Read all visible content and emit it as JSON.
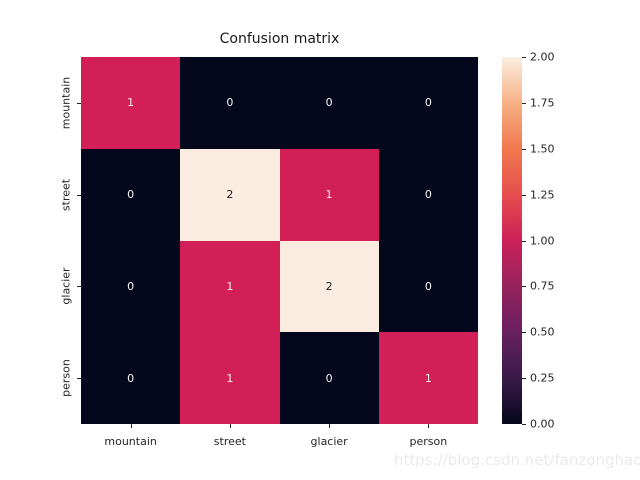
{
  "title": "Confusion matrix",
  "watermark": "https://blog.csdn.net/fanzonghao",
  "chart_data": {
    "type": "heatmap",
    "title": "Confusion matrix",
    "x_categories": [
      "mountain",
      "street",
      "glacier",
      "person"
    ],
    "y_categories": [
      "mountain",
      "street",
      "glacier",
      "person"
    ],
    "values": [
      [
        1,
        0,
        0,
        0
      ],
      [
        0,
        2,
        1,
        0
      ],
      [
        0,
        1,
        2,
        0
      ],
      [
        0,
        1,
        0,
        1
      ]
    ],
    "annotated": true,
    "colormap": "rocket",
    "vmin": 0,
    "vmax": 2,
    "colorbar_ticks": [
      "0.00",
      "0.25",
      "0.50",
      "0.75",
      "1.00",
      "1.25",
      "1.50",
      "1.75",
      "2.00"
    ],
    "legend_position": "right-colorbar",
    "grid": false
  },
  "colors": {
    "background": "#ffffff",
    "axis_text": "#262626",
    "title_text": "#1a1a1a",
    "watermark_text": "#eaeaea",
    "annot_light": "#f5f5f5",
    "annot_dark": "#1b1b22",
    "value_0": "#05071c",
    "value_1": "#d21f58",
    "value_2": "#faecde",
    "colorbar_gradient_bottom_to_top": [
      "#05071c",
      "#3a1a49",
      "#67205f",
      "#97225f",
      "#cb2158",
      "#e64e4e",
      "#f0774f",
      "#f6b185",
      "#fbeee0"
    ]
  }
}
